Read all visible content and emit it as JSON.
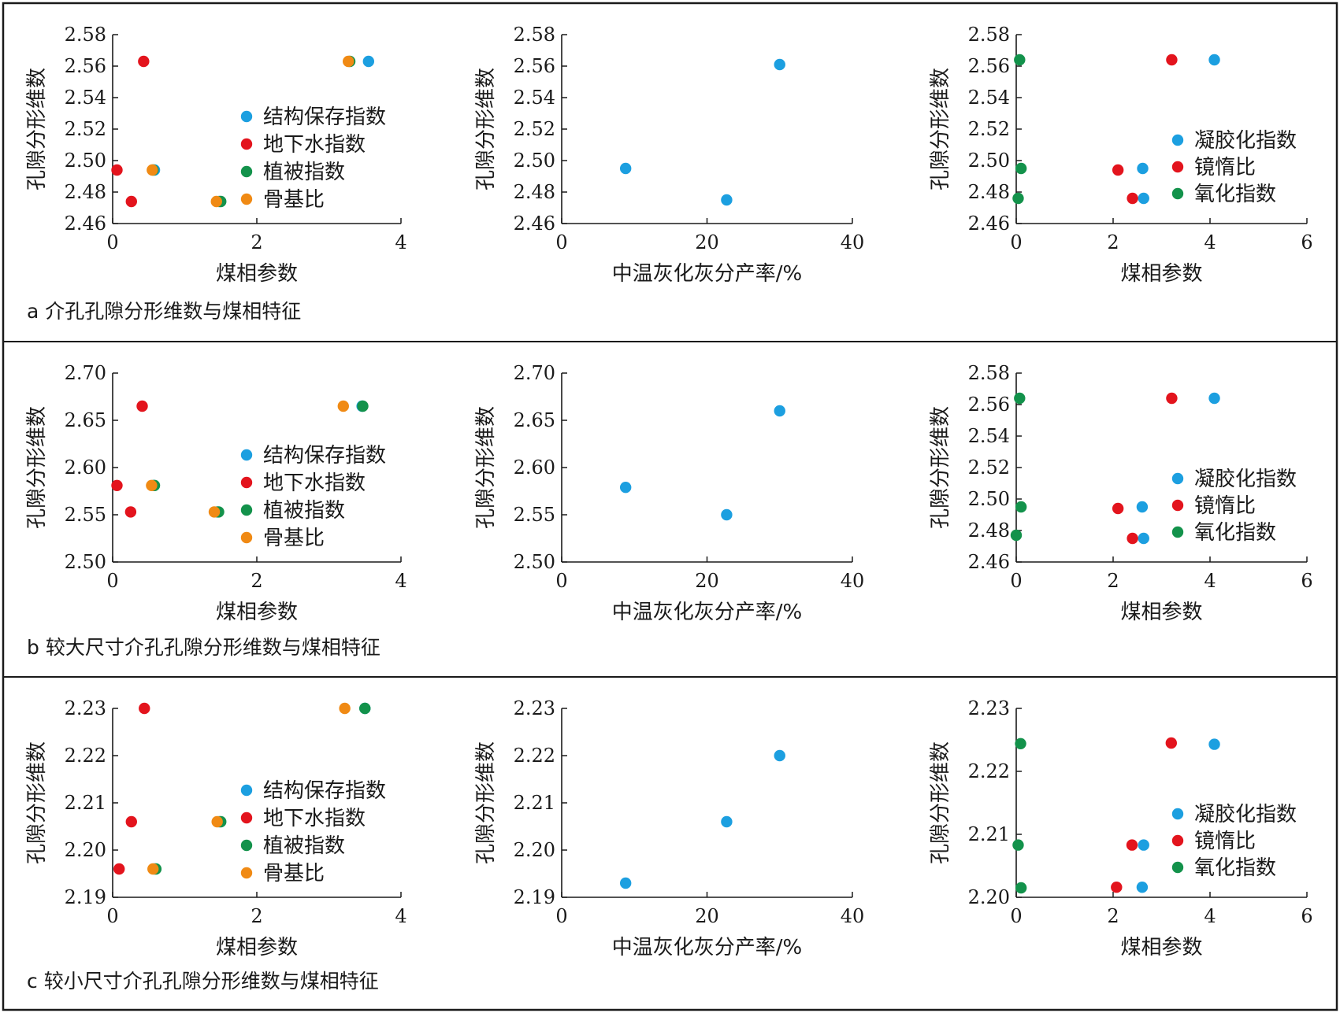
{
  "colors": {
    "blue": "#1c9fe0",
    "red": "#e3141d",
    "green": "#13924b",
    "orange": "#f08a14",
    "frame": "#1a1a1a"
  },
  "rows": [
    {
      "caption": "a 介孔孔隙分形维数与煤相特征",
      "charts": [
        {
          "chart_data": {
            "type": "scatter",
            "xlabel": "煤相参数",
            "ylabel": "孔隙分形维数",
            "xlim": [
              0,
              4
            ],
            "xticks": [
              "0",
              "2",
              "4"
            ],
            "ylim": [
              2.46,
              2.58
            ],
            "yticks": [
              "2.46",
              "2.48",
              "2.50",
              "2.52",
              "2.54",
              "2.56",
              "2.58"
            ],
            "legend_position": "right",
            "series": [
              {
                "name": "结构保存指数",
                "color": "blue",
                "points": [
                  [
                    0.58,
                    2.494
                  ],
                  [
                    1.48,
                    2.474
                  ],
                  [
                    3.55,
                    2.563
                  ]
                ]
              },
              {
                "name": "地下水指数",
                "color": "red",
                "points": [
                  [
                    0.06,
                    2.494
                  ],
                  [
                    0.26,
                    2.474
                  ],
                  [
                    0.43,
                    2.563
                  ]
                ]
              },
              {
                "name": "植被指数",
                "color": "green",
                "points": [
                  [
                    0.56,
                    2.494
                  ],
                  [
                    1.5,
                    2.474
                  ],
                  [
                    3.29,
                    2.563
                  ]
                ]
              },
              {
                "name": "骨基比",
                "color": "orange",
                "points": [
                  [
                    0.55,
                    2.494
                  ],
                  [
                    1.44,
                    2.474
                  ],
                  [
                    3.27,
                    2.563
                  ]
                ]
              }
            ]
          }
        },
        {
          "chart_data": {
            "type": "scatter",
            "xlabel": "中温灰化灰分产率/%",
            "ylabel": "孔隙分形维数",
            "xlim": [
              0,
              40
            ],
            "xticks": [
              "0",
              "20",
              "40"
            ],
            "ylim": [
              2.46,
              2.58
            ],
            "yticks": [
              "2.46",
              "2.48",
              "2.50",
              "2.52",
              "2.54",
              "2.56",
              "2.58"
            ],
            "series": [
              {
                "name": "",
                "color": "blue",
                "points": [
                  [
                    8.8,
                    2.495
                  ],
                  [
                    22.7,
                    2.475
                  ],
                  [
                    30.0,
                    2.561
                  ]
                ]
              }
            ]
          }
        },
        {
          "chart_data": {
            "type": "scatter",
            "xlabel": "煤相参数",
            "ylabel": "孔隙分形维数",
            "xlim": [
              0,
              6
            ],
            "xticks": [
              "0",
              "2",
              "4",
              "6"
            ],
            "ylim": [
              2.46,
              2.58
            ],
            "yticks": [
              "2.46",
              "2.48",
              "2.50",
              "2.52",
              "2.54",
              "2.56",
              "2.58"
            ],
            "legend_position": "right",
            "series": [
              {
                "name": "凝胶化指数",
                "color": "blue",
                "points": [
                  [
                    2.61,
                    2.495
                  ],
                  [
                    2.63,
                    2.476
                  ],
                  [
                    4.09,
                    2.564
                  ]
                ]
              },
              {
                "name": "镜惰比",
                "color": "red",
                "points": [
                  [
                    2.1,
                    2.494
                  ],
                  [
                    2.4,
                    2.476
                  ],
                  [
                    3.21,
                    2.564
                  ]
                ]
              },
              {
                "name": "氧化指数",
                "color": "green",
                "points": [
                  [
                    0.1,
                    2.495
                  ],
                  [
                    0.04,
                    2.476
                  ],
                  [
                    0.07,
                    2.564
                  ]
                ]
              }
            ]
          }
        }
      ]
    },
    {
      "caption": "b 较大尺寸介孔孔隙分形维数与煤相特征",
      "charts": [
        {
          "chart_data": {
            "type": "scatter",
            "xlabel": "煤相参数",
            "ylabel": "孔隙分形维数",
            "xlim": [
              0,
              4
            ],
            "xticks": [
              "0",
              "2",
              "4"
            ],
            "ylim": [
              2.5,
              2.7
            ],
            "yticks": [
              "2.50",
              "2.55",
              "2.60",
              "2.65",
              "2.70"
            ],
            "legend_position": "right",
            "series": [
              {
                "name": "结构保存指数",
                "color": "blue",
                "points": [
                  [
                    0.57,
                    2.581
                  ],
                  [
                    1.45,
                    2.553
                  ],
                  [
                    3.46,
                    2.665
                  ]
                ]
              },
              {
                "name": "地下水指数",
                "color": "red",
                "points": [
                  [
                    0.06,
                    2.581
                  ],
                  [
                    0.25,
                    2.553
                  ],
                  [
                    0.41,
                    2.665
                  ]
                ]
              },
              {
                "name": "植被指数",
                "color": "green",
                "points": [
                  [
                    0.58,
                    2.581
                  ],
                  [
                    1.47,
                    2.553
                  ],
                  [
                    3.47,
                    2.665
                  ]
                ]
              },
              {
                "name": "骨基比",
                "color": "orange",
                "points": [
                  [
                    0.54,
                    2.581
                  ],
                  [
                    1.41,
                    2.553
                  ],
                  [
                    3.2,
                    2.665
                  ]
                ]
              }
            ]
          }
        },
        {
          "chart_data": {
            "type": "scatter",
            "xlabel": "中温灰化灰分产率/%",
            "ylabel": "孔隙分形维数",
            "xlim": [
              0,
              40
            ],
            "xticks": [
              "0",
              "20",
              "40"
            ],
            "ylim": [
              2.5,
              2.7
            ],
            "yticks": [
              "2.50",
              "2.55",
              "2.60",
              "2.65",
              "2.70"
            ],
            "series": [
              {
                "name": "",
                "color": "blue",
                "points": [
                  [
                    8.8,
                    2.579
                  ],
                  [
                    22.7,
                    2.55
                  ],
                  [
                    30.0,
                    2.66
                  ]
                ]
              }
            ]
          }
        },
        {
          "chart_data": {
            "type": "scatter",
            "xlabel": "煤相参数",
            "ylabel": "孔隙分形维数",
            "xlim": [
              0,
              6
            ],
            "xticks": [
              "0",
              "2",
              "4",
              "6"
            ],
            "ylim": [
              2.46,
              2.58
            ],
            "yticks": [
              "2.46",
              "2.48",
              "2.50",
              "2.52",
              "2.54",
              "2.56",
              "2.58"
            ],
            "legend_position": "right",
            "series": [
              {
                "name": "凝胶化指数",
                "color": "blue",
                "points": [
                  [
                    2.6,
                    2.495
                  ],
                  [
                    2.63,
                    2.475
                  ],
                  [
                    4.09,
                    2.564
                  ]
                ]
              },
              {
                "name": "镜惰比",
                "color": "red",
                "points": [
                  [
                    2.1,
                    2.494
                  ],
                  [
                    2.4,
                    2.475
                  ],
                  [
                    3.21,
                    2.564
                  ]
                ]
              },
              {
                "name": "氧化指数",
                "color": "green",
                "points": [
                  [
                    0.1,
                    2.495
                  ],
                  [
                    0.0,
                    2.477
                  ],
                  [
                    0.07,
                    2.564
                  ]
                ]
              }
            ]
          }
        }
      ]
    },
    {
      "caption": "c 较小尺寸介孔孔隙分形维数与煤相特征",
      "charts": [
        {
          "chart_data": {
            "type": "scatter",
            "xlabel": "煤相参数",
            "ylabel": "孔隙分形维数",
            "xlim": [
              0,
              4
            ],
            "xticks": [
              "0",
              "2",
              "4"
            ],
            "ylim": [
              2.19,
              2.23
            ],
            "yticks": [
              "2.19",
              "2.20",
              "2.21",
              "2.22",
              "2.23"
            ],
            "legend_position": "right",
            "series": [
              {
                "name": "结构保存指数",
                "color": "blue",
                "points": [
                  [
                    0.58,
                    2.196
                  ],
                  [
                    1.48,
                    2.206
                  ],
                  [
                    3.5,
                    2.23
                  ]
                ]
              },
              {
                "name": "地下水指数",
                "color": "red",
                "points": [
                  [
                    0.09,
                    2.196
                  ],
                  [
                    0.26,
                    2.206
                  ],
                  [
                    0.44,
                    2.23
                  ]
                ]
              },
              {
                "name": "植被指数",
                "color": "green",
                "points": [
                  [
                    0.6,
                    2.196
                  ],
                  [
                    1.5,
                    2.206
                  ],
                  [
                    3.5,
                    2.23
                  ]
                ]
              },
              {
                "name": "骨基比",
                "color": "orange",
                "points": [
                  [
                    0.56,
                    2.196
                  ],
                  [
                    1.45,
                    2.206
                  ],
                  [
                    3.22,
                    2.23
                  ]
                ]
              }
            ]
          }
        },
        {
          "chart_data": {
            "type": "scatter",
            "xlabel": "中温灰化灰分产率/%",
            "ylabel": "孔隙分形维数",
            "xlim": [
              0,
              40
            ],
            "xticks": [
              "0",
              "20",
              "40"
            ],
            "ylim": [
              2.19,
              2.23
            ],
            "yticks": [
              "2.19",
              "2.20",
              "2.21",
              "2.22",
              "2.23"
            ],
            "series": [
              {
                "name": "",
                "color": "blue",
                "points": [
                  [
                    8.8,
                    2.193
                  ],
                  [
                    22.7,
                    2.206
                  ],
                  [
                    30.0,
                    2.22
                  ]
                ]
              }
            ]
          }
        },
        {
          "chart_data": {
            "type": "scatter",
            "xlabel": "煤相参数",
            "ylabel": "孔隙分形维数",
            "xlim": [
              0,
              6
            ],
            "xticks": [
              "0",
              "2",
              "4",
              "6"
            ],
            "ylim": [
              2.2,
              2.23
            ],
            "yticks": [
              "2.20",
              "2.21",
              "2.22",
              "2.23"
            ],
            "legend_position": "right",
            "series": [
              {
                "name": "凝胶化指数",
                "color": "blue",
                "points": [
                  [
                    2.63,
                    2.2083
                  ],
                  [
                    2.6,
                    2.2016
                  ],
                  [
                    4.09,
                    2.2243
                  ]
                ]
              },
              {
                "name": "镜惰比",
                "color": "red",
                "points": [
                  [
                    2.39,
                    2.2083
                  ],
                  [
                    2.07,
                    2.2016
                  ],
                  [
                    3.2,
                    2.2245
                  ]
                ]
              },
              {
                "name": "氧化指数",
                "color": "green",
                "points": [
                  [
                    0.04,
                    2.2083
                  ],
                  [
                    0.1,
                    2.2015
                  ],
                  [
                    0.09,
                    2.2244
                  ]
                ]
              }
            ]
          }
        }
      ]
    }
  ]
}
